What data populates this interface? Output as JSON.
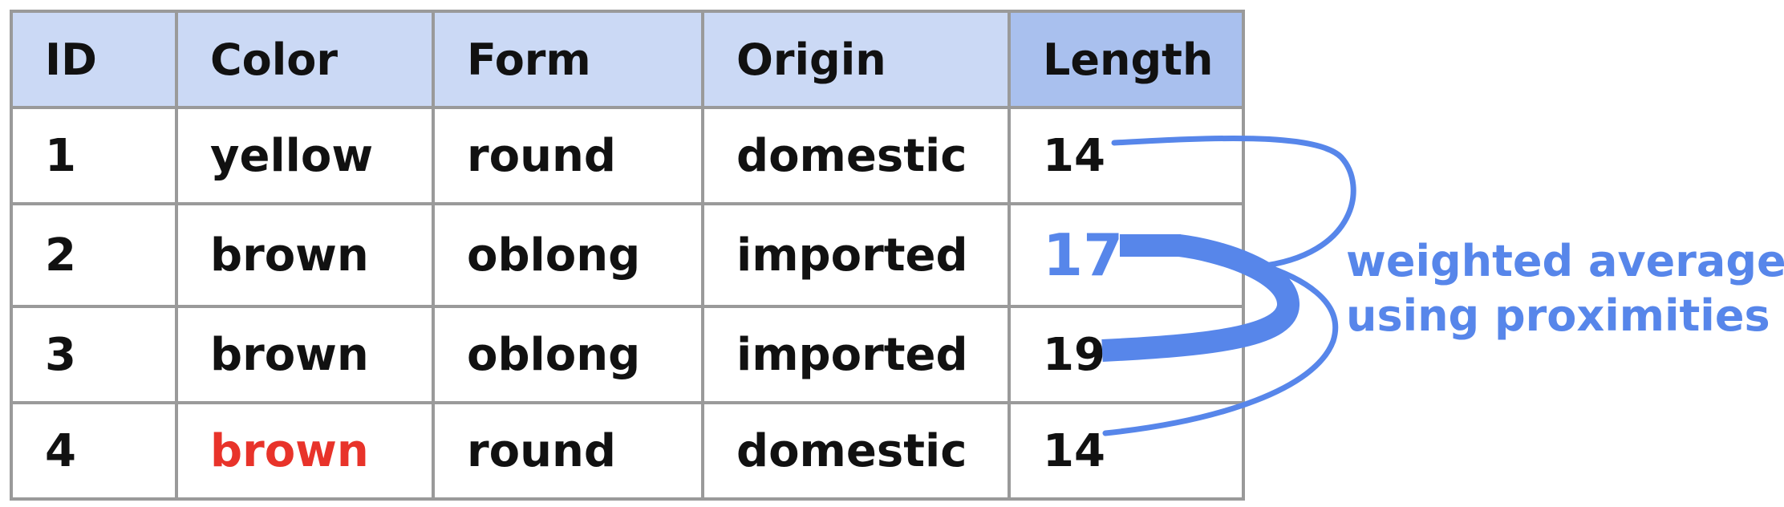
{
  "table": {
    "headers": [
      "ID",
      "Color",
      "Form",
      "Origin",
      "Length"
    ],
    "rows": [
      {
        "id": "1",
        "color": "yellow",
        "form": "round",
        "origin": "domestic",
        "length": "14"
      },
      {
        "id": "2",
        "color": "brown",
        "form": "oblong",
        "origin": "imported",
        "length": "17"
      },
      {
        "id": "3",
        "color": "brown",
        "form": "oblong",
        "origin": "imported",
        "length": "19"
      },
      {
        "id": "4",
        "color": "brown",
        "form": "round",
        "origin": "domestic",
        "length": "14"
      }
    ]
  },
  "annotation": {
    "line1": "weighted average",
    "line2": "using proximities"
  },
  "colors": {
    "header_bg": "#cbd9f5",
    "length_header_bg": "#a9c0ee",
    "grid": "#9a9a9a",
    "accent_blue": "#5786ea",
    "highlight_red": "#e8332a",
    "text": "#111111"
  }
}
